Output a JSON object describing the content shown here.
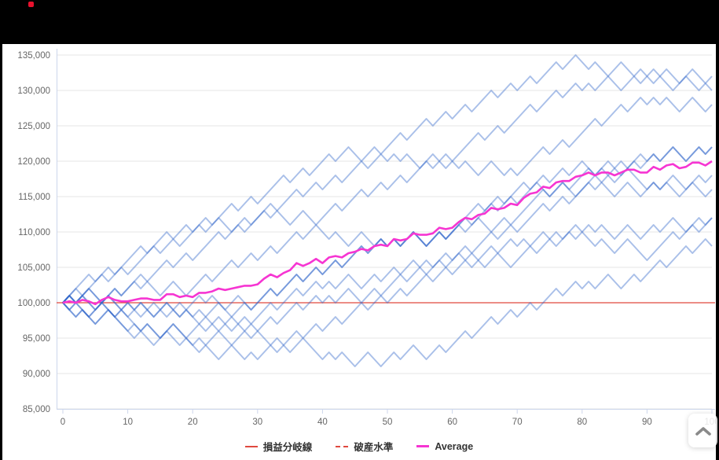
{
  "header": {
    "logo_color": "#e8112d"
  },
  "legend": {
    "items": [
      {
        "label": "損益分岐線",
        "style": "solid",
        "color": "#e0493f"
      },
      {
        "label": "破産水準",
        "style": "dashed",
        "color": "#e0493f"
      },
      {
        "label": "Average",
        "style": "solid",
        "color": "#f635d2"
      }
    ]
  },
  "scroll_button": {
    "icon": "chevron-up"
  },
  "chart_data": {
    "type": "line",
    "title": "",
    "xlabel": "",
    "ylabel": "",
    "grid": "horizontal",
    "legend_position": "bottom-center",
    "x_axis": {
      "min": 0,
      "max": 100,
      "tick_interval": 10,
      "ticks": [
        0,
        10,
        20,
        30,
        40,
        50,
        60,
        70,
        80,
        90,
        100
      ]
    },
    "y_axis": {
      "min": 85000,
      "max": 135000,
      "tick_interval": 5000,
      "ticks": [
        135000,
        130000,
        125000,
        120000,
        115000,
        110000,
        105000,
        100000,
        95000,
        90000,
        85000
      ],
      "label_format": "thousands-comma"
    },
    "plot_lines": [
      {
        "label": "損益分岐線",
        "value": 100000,
        "style": "solid",
        "color": "#e0493f"
      }
    ],
    "series": {
      "description": "Monte-Carlo equity simulation paths, start 100,000, each x-step is +1000 or -1000",
      "start_value": 100000,
      "step_size": 1000,
      "encoding": "'+' = +1000, '-' = -1000 per x unit; segments of 10 steps, joined in order",
      "simulations": [
        [
          "++++-++-++",
          "++-+++-++-",
          "++-+++-++-",
          "++++-++-++",
          "+-++--++-+",
          "++-+++-++-",
          "++-+++-++-",
          "++-+++-++-",
          "-+--++--+-",
          "+-+--++--+"
        ],
        [
          "++-+++-++-",
          "++++-++-++",
          "+-++--++-+",
          "++-+++-++-",
          "++-+++-++-",
          "+-+--++--+",
          "++++-++-++",
          "++-+++-++-",
          "+-++--++-+",
          "-+--++--+-"
        ],
        [
          "+-++--++-+",
          "++-+++-++-",
          "++++-++-++",
          "+-+--++--+",
          "++-+++-++-",
          "++-+++-++-",
          "-+--++--+-",
          "++++-++-++",
          "++-+++-++-",
          "+-+--++--+"
        ],
        [
          "+-++--++-+",
          "+-+--++--+",
          "++-+++-++-",
          "++-+++-++-",
          "-+--++--+-",
          "+-++--++-+",
          "++++-++-++",
          "+-+--++--+",
          "++-+++-++-",
          "+-++--++-+"
        ],
        [
          "-+--++--+-",
          "+-++--++-+",
          "+-+--++--+",
          "++-+++-++-",
          "++-+++-++-",
          "+-++--++-+",
          "+-++--++-+",
          "++++-++-++",
          "+-++--++-+",
          "+-++--++-+"
        ],
        [
          "--+--++---",
          "+-+--++--+",
          "+-++--++-+",
          "++-+++-++-",
          "+-++--++-+",
          "+-++--++-+",
          "++-+++-++-",
          "++++-++-++",
          "+-+--++--+",
          "+-++--++-+"
        ],
        [
          "+-+--++--+",
          "-+--++--+-",
          "+-++--++-+",
          "++-+++-++-",
          "++-+++-++-",
          "+-++--++-+",
          "++-+++-++-",
          "++++-++-++",
          "--+--++---",
          "+-+--++--+"
        ],
        [
          "--+--++---",
          "-+--++--+-",
          "+-++--++-+",
          "++-+++-++-",
          "+-++--++-+",
          "++-+++-++-",
          "+-+--++--+",
          "++-+++-++-",
          "--+--++---",
          "++++-++-++"
        ],
        [
          "-+--++--+-",
          "--+--++---",
          "-+--++--+-",
          "++-+++-++-",
          "++-+++-++-",
          "++-+++-++-",
          "++-+++-++-",
          "+-++--++-+",
          "+-+--++--+",
          "+-++--++-+"
        ],
        [
          "+-+--++--+",
          "-+--++--+-",
          "-+--++--+-",
          "--+--++---",
          "+-+--++--+",
          "+-++--++-+",
          "++-+++-++-",
          "++-+++-++-",
          "+-++--++-+",
          "++-+++-++-"
        ]
      ],
      "average": {
        "name": "Average",
        "derived": "mean of simulation paths",
        "end_value": 120000
      }
    },
    "colors": {
      "simulation": "rgba(43,98,201,0.40)",
      "average": "#f635d2",
      "breakeven": "#e0493f",
      "grid": "#e6e6e6",
      "axis": "#ccd6eb",
      "tick_text": "#666666"
    }
  }
}
